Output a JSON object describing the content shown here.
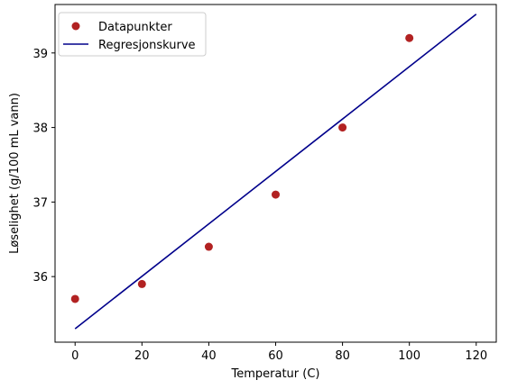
{
  "chart_data": {
    "type": "scatter",
    "xlabel": "Temperatur (C)",
    "ylabel": "Løselighet (g/100 mL vann)",
    "xlim": [
      -6,
      126
    ],
    "ylim": [
      35.12,
      39.65
    ],
    "xticks": [
      0,
      20,
      40,
      60,
      80,
      100,
      120
    ],
    "yticks": [
      36,
      37,
      38,
      39
    ],
    "grid": false,
    "legend_position": "top-left",
    "series": [
      {
        "name": "Datapunkter",
        "kind": "scatter",
        "color": "#b22222",
        "x": [
          0,
          20,
          40,
          60,
          80,
          100
        ],
        "y": [
          35.7,
          35.9,
          36.4,
          37.1,
          38.0,
          39.2
        ]
      },
      {
        "name": "Regresjonskurve",
        "kind": "line",
        "color": "#00008b",
        "x": [
          0,
          120
        ],
        "y": [
          35.3,
          39.52
        ]
      }
    ]
  }
}
